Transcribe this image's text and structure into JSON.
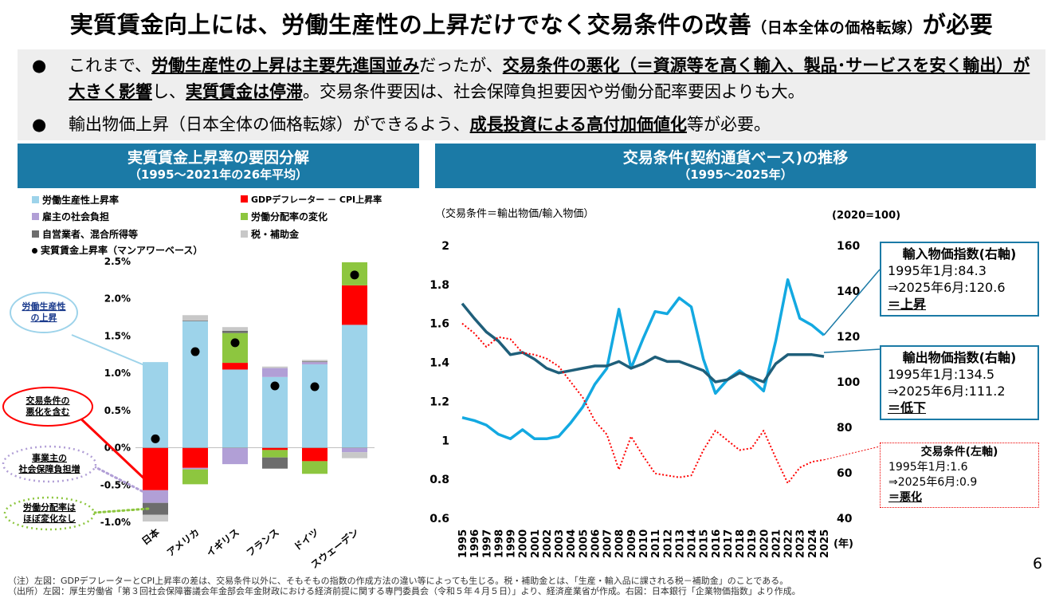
{
  "page": {
    "title_main_a": "実質賃金向上には、労働生産性の上昇だけでなく交易条件の改善",
    "title_sub": "（日本全体の価格転嫁）",
    "title_main_b": "が必要",
    "page_number": "6"
  },
  "bullets": [
    {
      "dot": "●",
      "parts": [
        {
          "t": "これまで、",
          "b": false
        },
        {
          "t": "労働生産性の上昇は主要先進国並み",
          "b": true
        },
        {
          "t": "だったが、",
          "b": false
        },
        {
          "t": "交易条件の悪化（＝資源等を高く輸入、製品･サービスを安く輸出）が大きく影響",
          "b": true
        },
        {
          "t": "し、",
          "b": false
        },
        {
          "t": "実質賃金は停滞",
          "b": true
        },
        {
          "t": "。交易条件要因は、社会保障負担要因や労働分配率要因よりも大。",
          "b": false
        }
      ]
    },
    {
      "dot": "●",
      "parts": [
        {
          "t": "輸出物価上昇（日本全体の価格転嫁）ができるよう、",
          "b": false
        },
        {
          "t": "成長投資による高付加価値化",
          "b": true
        },
        {
          "t": "等が必要。",
          "b": false
        }
      ]
    }
  ],
  "left_panel": {
    "title": "実質賃金上昇率の要因分解",
    "subtitle": "（1995～2021年の26年平均）",
    "legend": [
      {
        "label": "労働生産性上昇率",
        "color": "#9dd3ea",
        "kind": "square"
      },
      {
        "label": "GDPデフレーター － CPI上昇率",
        "color": "#ff0000",
        "kind": "square"
      },
      {
        "label": "雇主の社会負担",
        "color": "#b19fd6",
        "kind": "square"
      },
      {
        "label": "労働分配率の変化",
        "color": "#8dc63f",
        "kind": "square"
      },
      {
        "label": "自営業者、混合所得等",
        "color": "#6d6d6d",
        "kind": "square"
      },
      {
        "label": "税・補助金",
        "color": "#c8c8c8",
        "kind": "square"
      },
      {
        "label": "実質賃金上昇率（マンアワーベース）",
        "color": "#000000",
        "kind": "dot"
      }
    ],
    "callouts": {
      "productivity": "労働生産性\nの上昇",
      "terms": "交易条件の\n悪化を含む",
      "social": "事業主の\n社会保障負担増",
      "labor_share": "労働分配率は\nほぼ変化なし"
    }
  },
  "chart_data": [
    {
      "type": "bar",
      "stacked": true,
      "title": "実質賃金上昇率の要因分解",
      "subtitle": "（1995～2021年の26年平均）",
      "categories": [
        "日本",
        "アメリカ",
        "イギリス",
        "フランス",
        "ドイツ",
        "スウェーデン"
      ],
      "ylim": [
        -1.0,
        2.5
      ],
      "yticks": [
        -1.0,
        -0.5,
        0.0,
        0.5,
        1.0,
        1.5,
        2.0,
        2.5
      ],
      "ytick_labels": [
        "-1.0%",
        "-0.5%",
        "0.0%",
        "0.5%",
        "1.0%",
        "1.5%",
        "2.0%",
        "2.5%"
      ],
      "series": [
        {
          "name": "労働生産性上昇率",
          "color": "#9dd3ea",
          "values": [
            1.15,
            1.7,
            1.05,
            0.95,
            1.12,
            1.65
          ]
        },
        {
          "name": "GDPデフレーター － CPI上昇率",
          "color": "#ff0000",
          "values": [
            -0.57,
            -0.27,
            0.09,
            -0.03,
            -0.18,
            0.53
          ]
        },
        {
          "name": "雇主の社会負担",
          "color": "#b19fd6",
          "values": [
            -0.17,
            -0.02,
            -0.22,
            0.12,
            0.03,
            -0.06
          ]
        },
        {
          "name": "労働分配率の変化",
          "color": "#8dc63f",
          "values": [
            0.0,
            -0.2,
            0.4,
            -0.1,
            -0.17,
            0.31
          ]
        },
        {
          "name": "自営業者、混合所得等",
          "color": "#6d6d6d",
          "values": [
            -0.16,
            0.01,
            0.03,
            -0.15,
            0.01,
            0.0
          ]
        },
        {
          "name": "税・補助金",
          "color": "#c8c8c8",
          "values": [
            -0.09,
            0.07,
            0.05,
            0.02,
            0.02,
            -0.08
          ]
        }
      ],
      "dots": {
        "name": "実質賃金上昇率（マンアワーベース）",
        "values": [
          0.12,
          1.29,
          1.41,
          0.83,
          0.82,
          2.32
        ]
      }
    },
    {
      "type": "line",
      "title": "交易条件(契約通貨ベース)の推移",
      "subtitle": "（1995～2025年）",
      "note_left": "（交易条件＝輸出物価/輸入物価）",
      "note_right": "(2020=100)",
      "x_unit": "(年)",
      "x": [
        "1995",
        "1996",
        "1997",
        "1998",
        "1999",
        "2000",
        "2001",
        "2002",
        "2003",
        "2004",
        "2005",
        "2006",
        "2007",
        "2008",
        "2009",
        "2010",
        "2011",
        "2012",
        "2013",
        "2014",
        "2015",
        "2016",
        "2017",
        "2018",
        "2019",
        "2020",
        "2021",
        "2022",
        "2023",
        "2024",
        "2025"
      ],
      "ylim_left": [
        0.6,
        2.0
      ],
      "yticks_left": [
        "2",
        "1.8",
        "1.6",
        "1.4",
        "1.2",
        "1",
        "0.8",
        "0.6"
      ],
      "ylim_right": [
        40,
        160
      ],
      "yticks_right": [
        "160",
        "140",
        "120",
        "100",
        "80",
        "60",
        "40"
      ],
      "series": [
        {
          "name": "輸入物価指数(右軸)",
          "axis": "right",
          "color": "#13a9e1",
          "style": "solid",
          "values": [
            84.3,
            83,
            81,
            77,
            75,
            79,
            75,
            75,
            76,
            82,
            89,
            99,
            106,
            132,
            106,
            119,
            131,
            130,
            137,
            133,
            110,
            95,
            101,
            105,
            101,
            96,
            118,
            145,
            128,
            125,
            120.6
          ]
        },
        {
          "name": "輸出物価指数(右軸)",
          "axis": "right",
          "color": "#1f5f7a",
          "style": "solid",
          "values": [
            134.5,
            128,
            122,
            118,
            112,
            113,
            110,
            106,
            104,
            105,
            106,
            107,
            107,
            109,
            106,
            108,
            111,
            109,
            109,
            107,
            105,
            100,
            101,
            104,
            102,
            100,
            108,
            112,
            112,
            112,
            111.2
          ]
        },
        {
          "name": "交易条件(左軸)",
          "axis": "left",
          "color": "#ff0000",
          "style": "dotted",
          "values": [
            1.6,
            1.55,
            1.48,
            1.53,
            1.52,
            1.45,
            1.44,
            1.42,
            1.38,
            1.3,
            1.22,
            1.1,
            1.03,
            0.85,
            1.02,
            0.92,
            0.83,
            0.82,
            0.81,
            0.82,
            0.95,
            1.05,
            1.0,
            0.95,
            0.96,
            1.05,
            0.91,
            0.78,
            0.86,
            0.89,
            0.9
          ]
        }
      ]
    }
  ],
  "right_panel": {
    "title": "交易条件(契約通貨ベース)の推移",
    "subtitle": "（1995～2025年）",
    "boxes": {
      "import": {
        "title": "輸入物価指数(右軸)",
        "l1": "1995年1月:84.3",
        "l2": "⇒2025年6月:120.6",
        "l3": "＝上昇"
      },
      "export": {
        "title": "輸出物価指数(右軸)",
        "l1": "1995年1月:134.5",
        "l2": "⇒2025年6月:111.2",
        "l3": "＝低下"
      },
      "terms": {
        "title": "交易条件(左軸)",
        "l1": "1995年1月:1.6",
        "l2": "⇒2025年6月:0.9",
        "l3": "＝悪化"
      }
    }
  },
  "footnotes": {
    "note": "（注）左図：GDPデフレーターとCPI上昇率の差は、交易条件以外に、そもそもの指数の作成方法の違い等によっても生じる。税・補助金とは、「生産・輸入品に課される税－補助金」のことである。",
    "source": "（出所）左図：厚生労働省「第３回社会保障審議会年金部会年金財政における経済前提に関する専門委員会（令和５年４月５日）」より、経済産業省が作成。右図：日本銀行「企業物価指数」より作成。"
  }
}
